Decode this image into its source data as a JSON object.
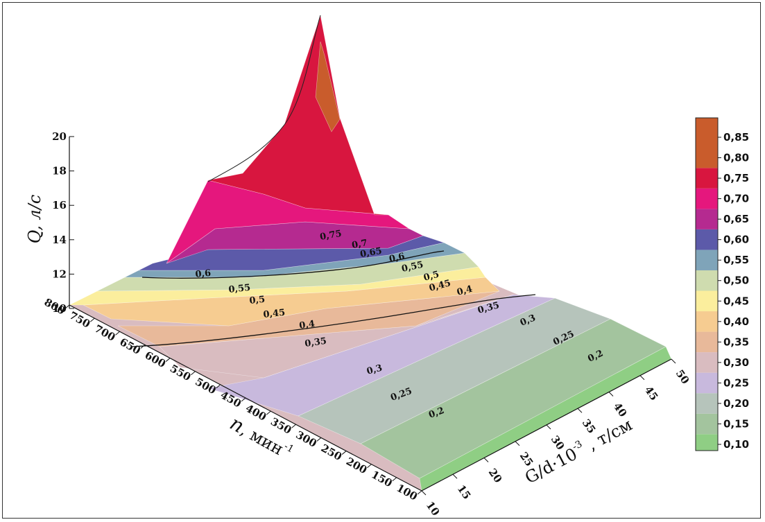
{
  "chart_data": {
    "type": "surface3d",
    "title": "",
    "z_axis": {
      "label_var": "Q",
      "label_unit": ", л/с",
      "ticks": [
        "10",
        "12",
        "14",
        "16",
        "18",
        "20"
      ],
      "range": [
        10,
        20
      ]
    },
    "n_axis": {
      "label_var": "n",
      "label_unit": ", мин",
      "label_sup": "-1",
      "ticks": [
        "100",
        "150",
        "200",
        "250",
        "300",
        "350",
        "400",
        "450",
        "500",
        "550",
        "600",
        "650",
        "700",
        "750",
        "800"
      ],
      "range": [
        100,
        800
      ]
    },
    "g_axis": {
      "label_main": "G/d·10",
      "label_sup": "-3",
      "label_unit": " , т/см",
      "ticks": [
        "10",
        "15",
        "20",
        "25",
        "30",
        "35",
        "40",
        "45",
        "50"
      ],
      "range": [
        10,
        50
      ]
    },
    "colorbar": {
      "levels": [
        "0,10",
        "0,15",
        "0,20",
        "0,25",
        "0,30",
        "0,35",
        "0,40",
        "0,45",
        "0,50",
        "0,55",
        "0,60",
        "0,65",
        "0,70",
        "0,75",
        "0,80",
        "0,85"
      ],
      "colors": [
        "#8fce84",
        "#a3c49e",
        "#b6c4bb",
        "#c8b9dd",
        "#d9bcc0",
        "#e8b99a",
        "#f6cc91",
        "#fbee9d",
        "#cfdcaf",
        "#7fa4b9",
        "#5c5aa9",
        "#b52a90",
        "#e5177d",
        "#d8163f",
        "#c95c2c"
      ]
    },
    "contour_labels": [
      "0,2",
      "0,25",
      "0,3",
      "0,35",
      "0,4",
      "0,45",
      "0,5",
      "0,55",
      "0,6",
      "0,65",
      "0,7",
      "0,75",
      "0,2",
      "0,25",
      "0,3",
      "0,35",
      "0,4",
      "0,45",
      "0,5",
      "0,55",
      "0,6"
    ]
  }
}
